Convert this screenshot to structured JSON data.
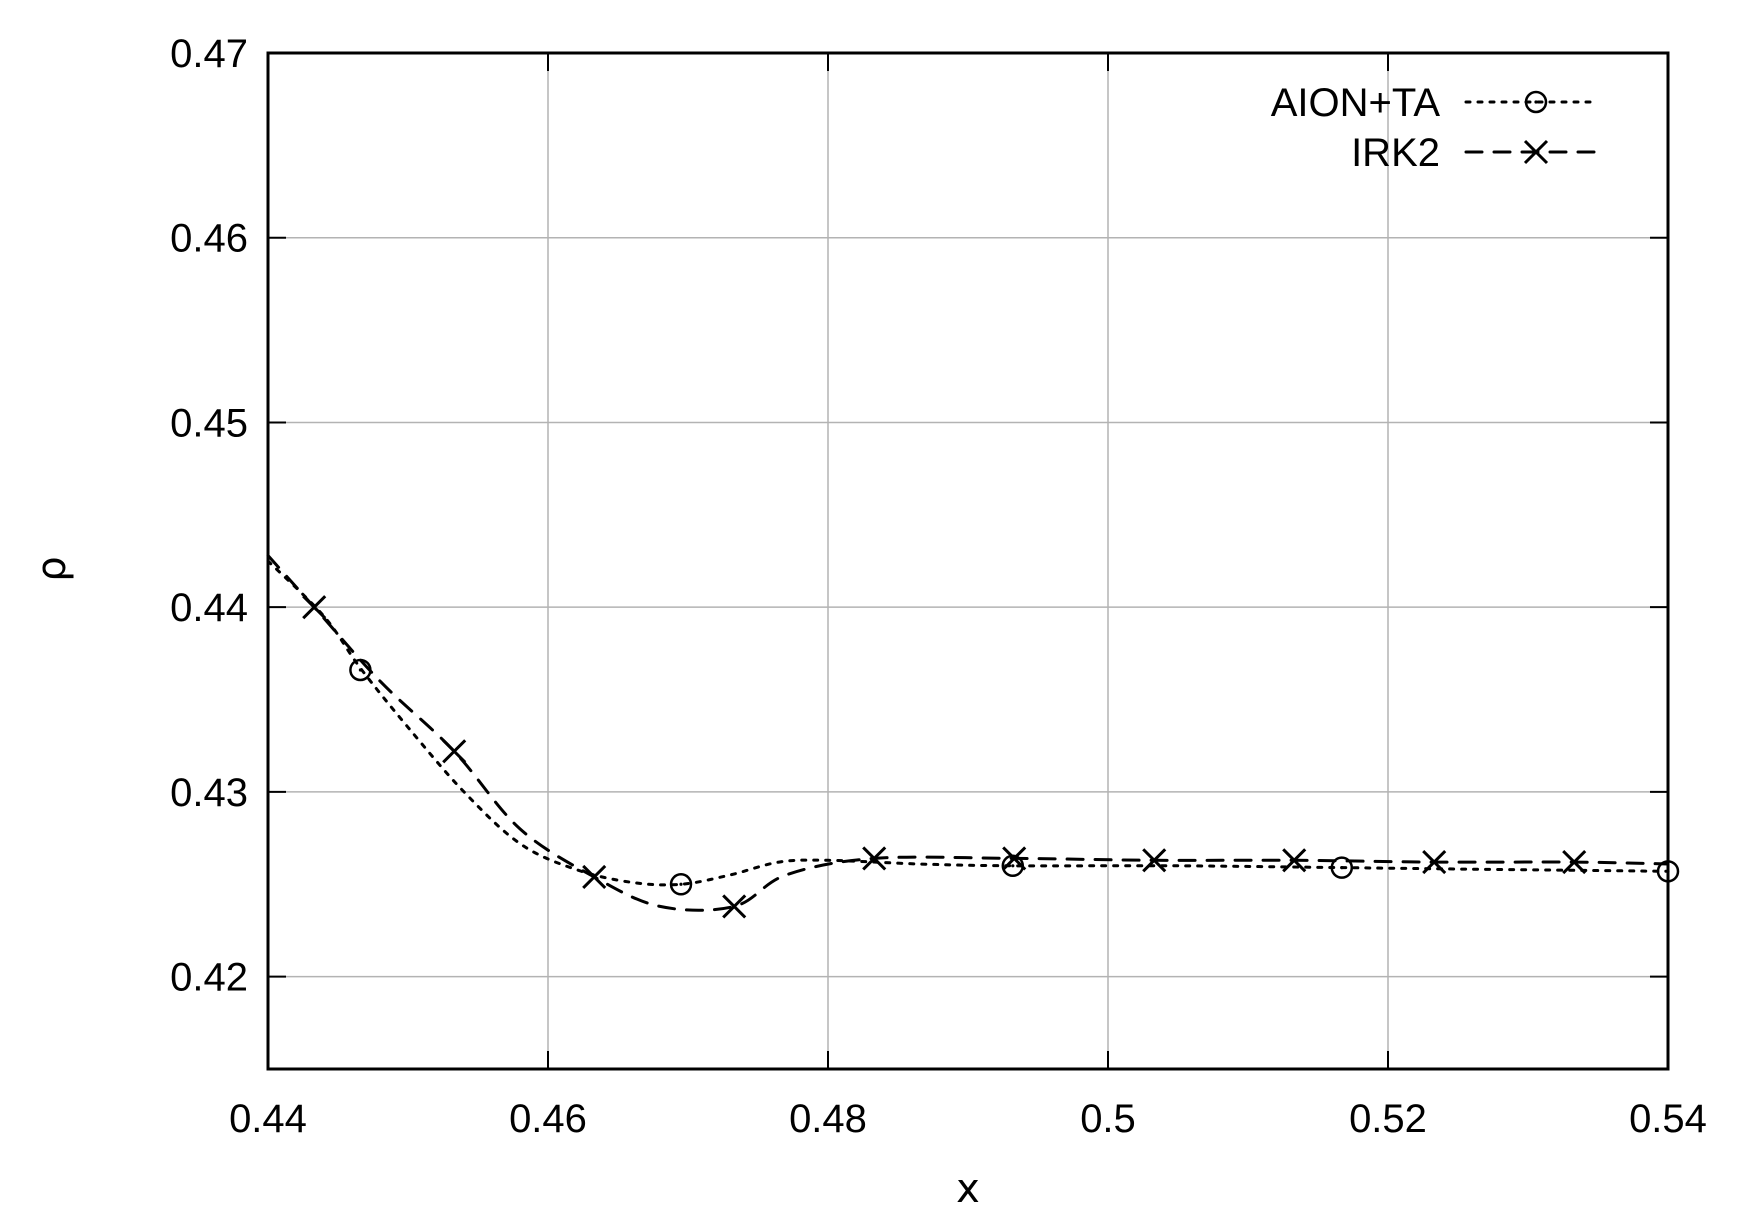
{
  "chart_data": {
    "type": "line",
    "title": "",
    "xlabel": "x",
    "ylabel": "ρ",
    "xlim": [
      0.44,
      0.54
    ],
    "ylim": [
      0.415,
      0.47
    ],
    "xticks": [
      "0.44",
      "0.46",
      "0.48",
      "0.5",
      "0.52",
      "0.54"
    ],
    "yticks": [
      "0.42",
      "0.43",
      "0.44",
      "0.45",
      "0.46",
      "0.47"
    ],
    "grid": true,
    "legend_position": "top-right",
    "series": [
      {
        "name": "AION+TA",
        "line_style": "dotted",
        "marker": "circle",
        "color": "#000000",
        "curve": [
          [
            0.44,
            0.4425
          ],
          [
            0.444,
            0.4395
          ],
          [
            0.4466,
            0.4367
          ],
          [
            0.45,
            0.4335
          ],
          [
            0.454,
            0.43
          ],
          [
            0.458,
            0.4272
          ],
          [
            0.462,
            0.4258
          ],
          [
            0.466,
            0.4251
          ],
          [
            0.4695,
            0.425
          ],
          [
            0.473,
            0.4255
          ],
          [
            0.4765,
            0.4262
          ],
          [
            0.48,
            0.4263
          ],
          [
            0.4865,
            0.4261
          ],
          [
            0.4932,
            0.426
          ],
          [
            0.505,
            0.426
          ],
          [
            0.5167,
            0.4259
          ],
          [
            0.528,
            0.4258
          ],
          [
            0.54,
            0.4257
          ]
        ],
        "markers_x": [
          0.4466,
          0.4695,
          0.4932,
          0.5167,
          0.54
        ],
        "markers_y": [
          0.4366,
          0.425,
          0.426,
          0.4259,
          0.4257
        ]
      },
      {
        "name": "IRK2",
        "line_style": "dashed",
        "marker": "cross",
        "color": "#000000",
        "curve": [
          [
            0.44,
            0.4428
          ],
          [
            0.4433,
            0.44
          ],
          [
            0.448,
            0.436
          ],
          [
            0.4533,
            0.4322
          ],
          [
            0.458,
            0.428
          ],
          [
            0.4633,
            0.4254
          ],
          [
            0.468,
            0.4238
          ],
          [
            0.4733,
            0.4238
          ],
          [
            0.477,
            0.4255
          ],
          [
            0.4833,
            0.4264
          ],
          [
            0.4933,
            0.4264
          ],
          [
            0.5033,
            0.4263
          ],
          [
            0.5133,
            0.4263
          ],
          [
            0.5233,
            0.4262
          ],
          [
            0.5333,
            0.4262
          ],
          [
            0.54,
            0.4261
          ]
        ],
        "markers_x": [
          0.4433,
          0.4533,
          0.4633,
          0.4733,
          0.4833,
          0.4933,
          0.5033,
          0.5133,
          0.5233,
          0.5333
        ],
        "markers_y": [
          0.44,
          0.4322,
          0.4254,
          0.4238,
          0.4264,
          0.4264,
          0.4263,
          0.4263,
          0.4262,
          0.4262
        ]
      }
    ]
  }
}
